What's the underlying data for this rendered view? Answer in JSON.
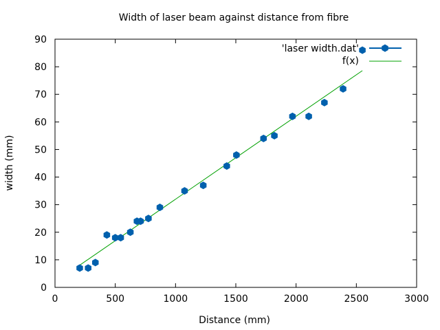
{
  "chart_data": {
    "type": "scatter",
    "title": "Width of laser beam against distance from fibre",
    "xlabel": "Distance (mm)",
    "ylabel": "width (mm)",
    "xlim": [
      0,
      3000
    ],
    "ylim": [
      0,
      90
    ],
    "xticks": [
      0,
      500,
      1000,
      1500,
      2000,
      2500,
      3000
    ],
    "yticks": [
      0,
      10,
      20,
      30,
      40,
      50,
      60,
      70,
      80,
      90
    ],
    "grid": false,
    "legend_position": "top-right",
    "series": [
      {
        "name": "'laser width.dat'",
        "kind": "points",
        "color": "#0060ad",
        "points": [
          [
            205,
            7
          ],
          [
            275,
            7
          ],
          [
            335,
            9
          ],
          [
            430,
            19
          ],
          [
            500,
            18
          ],
          [
            545,
            18
          ],
          [
            625,
            20
          ],
          [
            680,
            24
          ],
          [
            710,
            24
          ],
          [
            775,
            25
          ],
          [
            870,
            29
          ],
          [
            1075,
            35
          ],
          [
            1230,
            37
          ],
          [
            1425,
            44
          ],
          [
            1505,
            48
          ],
          [
            1730,
            54
          ],
          [
            1820,
            55
          ],
          [
            1970,
            62
          ],
          [
            2105,
            62
          ],
          [
            2235,
            67
          ],
          [
            2390,
            72
          ],
          [
            2550,
            86
          ]
        ]
      },
      {
        "name": "f(x)",
        "kind": "line",
        "color": "#00a000",
        "x": [
          200,
          2550
        ],
        "y": [
          7.9,
          78.6
        ]
      }
    ]
  }
}
